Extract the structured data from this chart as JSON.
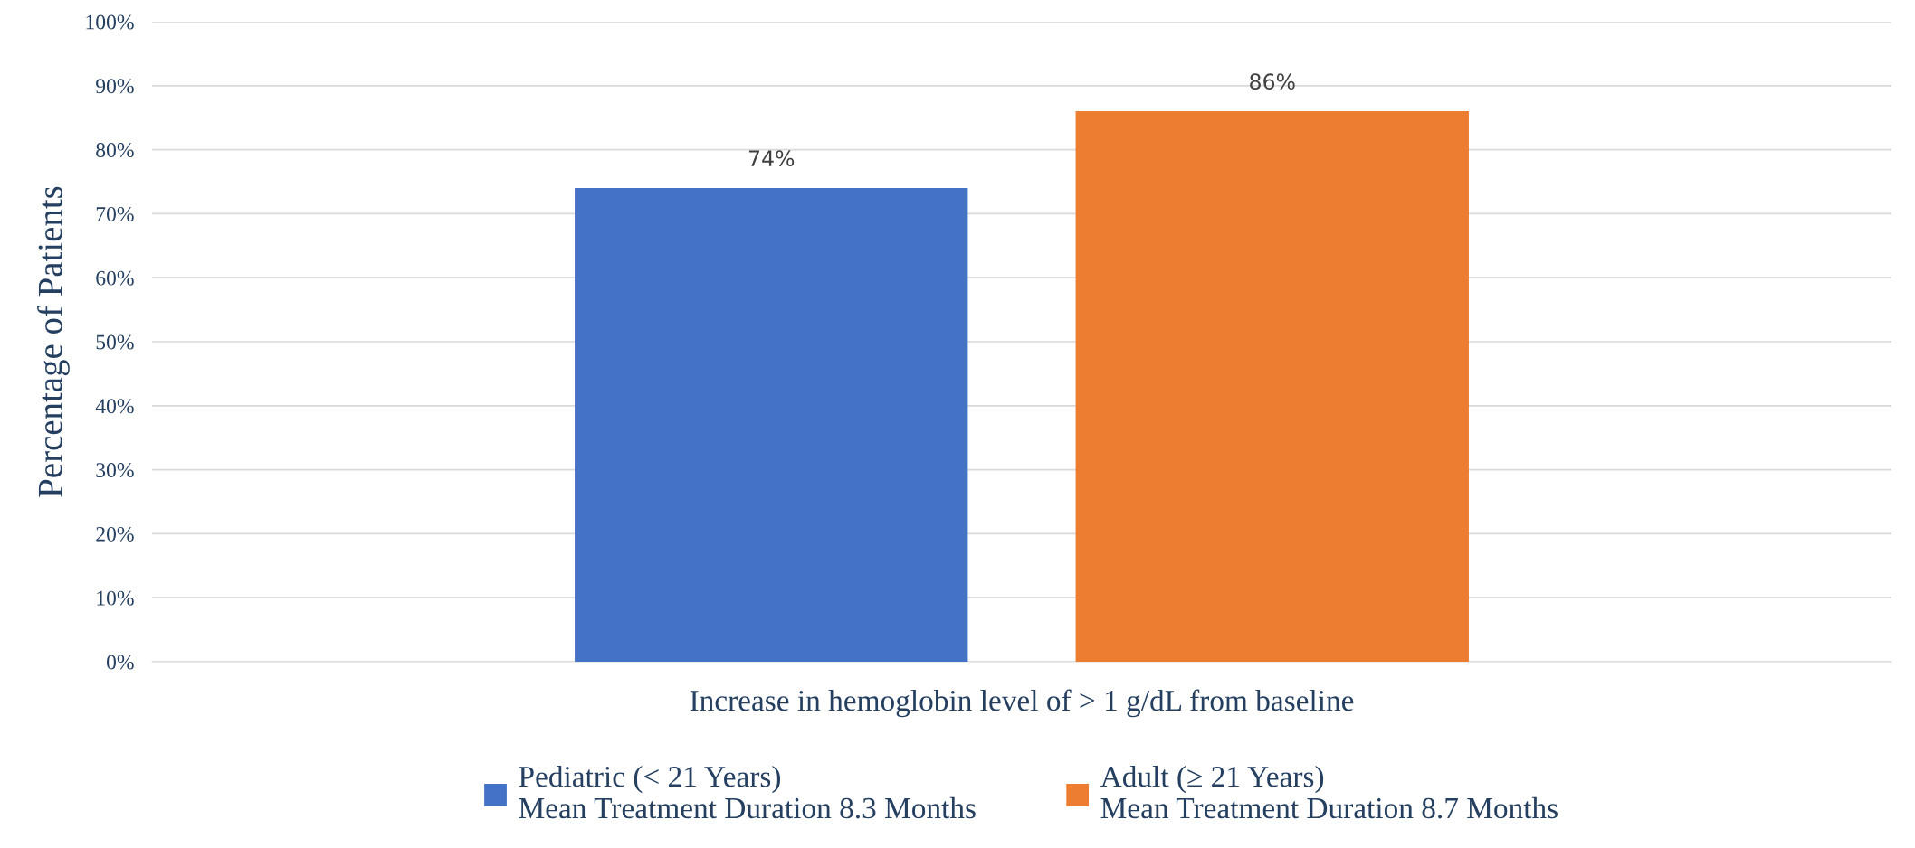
{
  "chart_data": {
    "type": "bar",
    "ylabel": "Percentage of Patients",
    "categories": [
      "Increase in hemoglobin level of > 1 g/dL from baseline"
    ],
    "series": [
      {
        "name": "Pediatric (< 21 Years)\nMean Treatment Duration 8.3 Months",
        "color": "#4472c4",
        "values": [
          74
        ],
        "value_labels": [
          "74%"
        ]
      },
      {
        "name": "Adult (≥ 21 Years)\nMean Treatment Duration 8.7 Months",
        "color": "#ed7d31",
        "values": [
          86
        ],
        "value_labels": [
          "86%"
        ]
      }
    ],
    "ylim": [
      0,
      100
    ],
    "yticks": [
      {
        "value": 0,
        "label": "0%"
      },
      {
        "value": 10,
        "label": "10%"
      },
      {
        "value": 20,
        "label": "20%"
      },
      {
        "value": 30,
        "label": "30%"
      },
      {
        "value": 40,
        "label": "40%"
      },
      {
        "value": 50,
        "label": "50%"
      },
      {
        "value": 60,
        "label": "60%"
      },
      {
        "value": 70,
        "label": "70%"
      },
      {
        "value": 80,
        "label": "80%"
      },
      {
        "value": 90,
        "label": "90%"
      },
      {
        "value": 100,
        "label": "100%"
      }
    ],
    "grid": "y",
    "legend": "bottom"
  }
}
